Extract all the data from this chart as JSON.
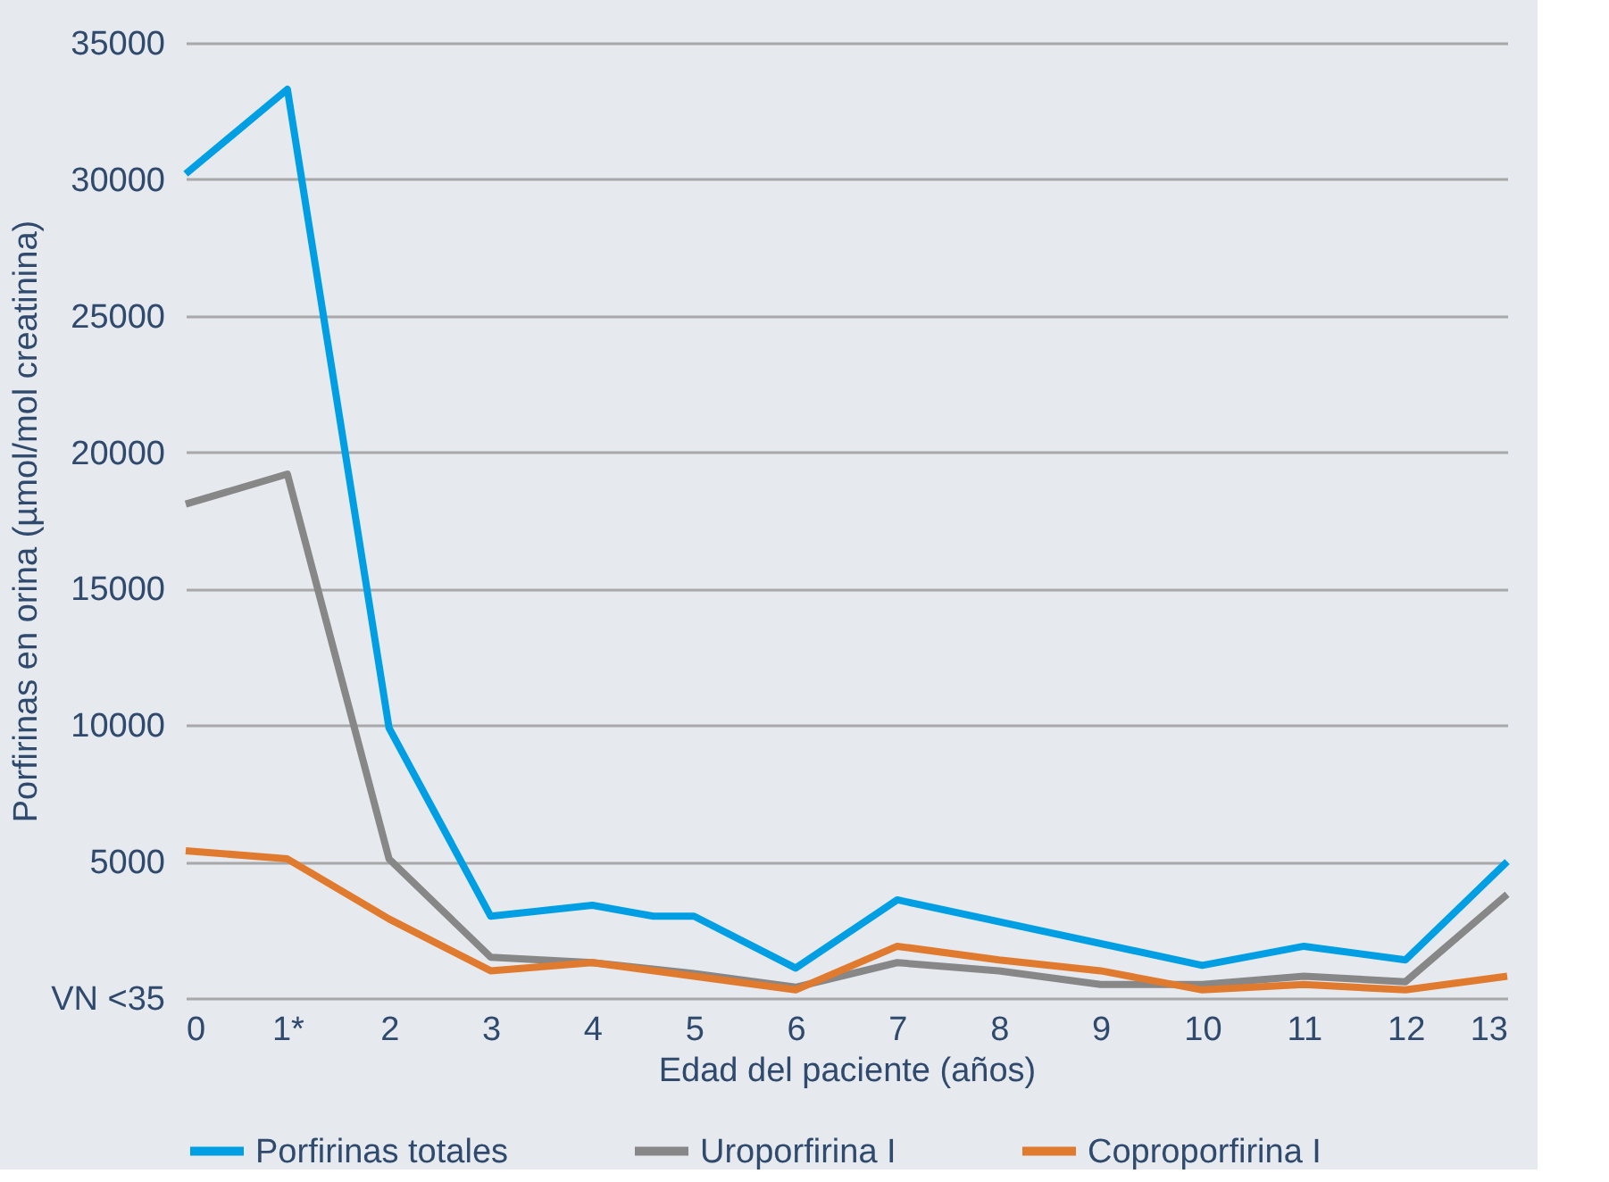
{
  "chart_data": {
    "type": "line",
    "xlabel": "Edad del paciente (años)",
    "ylabel": "Porfirinas en orina (µmol/mol creatinina)",
    "xlim": [
      0,
      13
    ],
    "xticks": [
      0,
      {
        "value": 1,
        "label": "1*"
      },
      2,
      3,
      4,
      5,
      6,
      7,
      8,
      9,
      10,
      11,
      12,
      13
    ],
    "ylim": [
      0,
      35000
    ],
    "yticks": [
      {
        "value": 0,
        "label": "VN <35"
      },
      5000,
      10000,
      15000,
      20000,
      25000,
      30000,
      35000
    ],
    "grid": "y",
    "legend": "bottom",
    "marker": "none",
    "line_style": "solid",
    "series": [
      {
        "name": "Porfirinas totales",
        "color": "#009fe3",
        "x": [
          0,
          1,
          2,
          3,
          4,
          4.6,
          5,
          6,
          7,
          10,
          11,
          12,
          13
        ],
        "values": [
          30200,
          33300,
          9900,
          3000,
          3400,
          3000,
          3000,
          1100,
          3600,
          1200,
          1900,
          1400,
          5000
        ]
      },
      {
        "name": "Uroporfirina I",
        "color": "#878787",
        "x": [
          0,
          1,
          2,
          3,
          4,
          5,
          6,
          7,
          8,
          9,
          10,
          11,
          12,
          13
        ],
        "values": [
          18100,
          19200,
          5100,
          1500,
          1300,
          900,
          400,
          1300,
          1000,
          500,
          500,
          800,
          600,
          3800
        ]
      },
      {
        "name": "Coproporfirina I",
        "color": "#e07a2f",
        "x": [
          0,
          1,
          2,
          3,
          4,
          5,
          6,
          7,
          8,
          9,
          10,
          11,
          12,
          13
        ],
        "values": [
          5400,
          5100,
          2900,
          1000,
          1300,
          800,
          300,
          1900,
          1400,
          1000,
          300,
          500,
          300,
          800
        ]
      }
    ]
  }
}
